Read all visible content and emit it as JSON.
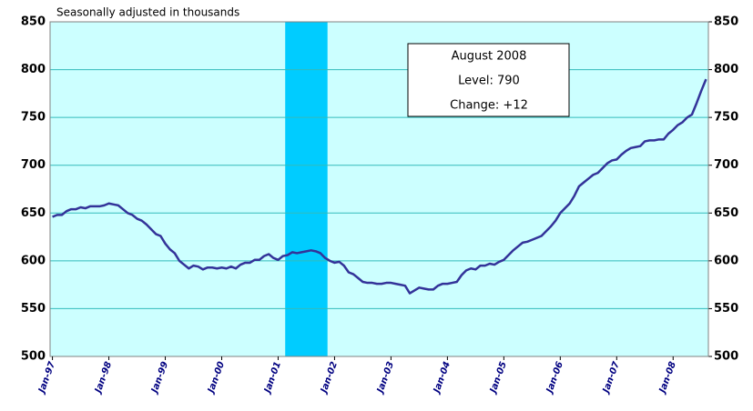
{
  "chart_data": {
    "type": "line",
    "subtitle": "Seasonally adjusted in thousands",
    "categories": [
      "Jan-97",
      null,
      null,
      null,
      null,
      null,
      null,
      null,
      null,
      null,
      null,
      null,
      "Jan-98",
      null,
      null,
      null,
      null,
      null,
      null,
      null,
      null,
      null,
      null,
      null,
      "Jan-99",
      null,
      null,
      null,
      null,
      null,
      null,
      null,
      null,
      null,
      null,
      null,
      "Jan-00",
      null,
      null,
      null,
      null,
      null,
      null,
      null,
      null,
      null,
      null,
      null,
      "Jan-01",
      null,
      null,
      null,
      null,
      null,
      null,
      null,
      null,
      null,
      null,
      null,
      "Jan-02",
      null,
      null,
      null,
      null,
      null,
      null,
      null,
      null,
      null,
      null,
      null,
      "Jan-03",
      null,
      null,
      null,
      null,
      null,
      null,
      null,
      null,
      null,
      null,
      null,
      "Jan-04",
      null,
      null,
      null,
      null,
      null,
      null,
      null,
      null,
      null,
      null,
      null,
      "Jan-05",
      null,
      null,
      null,
      null,
      null,
      null,
      null,
      null,
      null,
      null,
      null,
      "Jan-06",
      null,
      null,
      null,
      null,
      null,
      null,
      null,
      null,
      null,
      null,
      null,
      "Jan-07",
      null,
      null,
      null,
      null,
      null,
      null,
      null,
      null,
      null,
      null,
      null,
      "Jan-08",
      null,
      null,
      null,
      null,
      null,
      null,
      null
    ],
    "values": [
      646,
      648,
      648,
      652,
      654,
      654,
      656,
      655,
      657,
      657,
      657,
      658,
      660,
      659,
      658,
      654,
      650,
      648,
      644,
      642,
      638,
      633,
      628,
      626,
      618,
      612,
      608,
      600,
      596,
      592,
      595,
      594,
      591,
      593,
      593,
      592,
      593,
      592,
      594,
      592,
      596,
      598,
      598,
      601,
      601,
      605,
      607,
      603,
      601,
      605,
      606,
      609,
      608,
      609,
      610,
      611,
      610,
      608,
      603,
      600,
      598,
      599,
      595,
      588,
      586,
      582,
      578,
      577,
      577,
      576,
      576,
      577,
      577,
      576,
      575,
      574,
      566,
      569,
      572,
      571,
      570,
      570,
      574,
      576,
      576,
      577,
      578,
      585,
      590,
      592,
      591,
      595,
      595,
      597,
      596,
      599,
      601,
      606,
      611,
      615,
      619,
      620,
      622,
      624,
      626,
      631,
      636,
      642,
      650,
      655,
      660,
      668,
      678,
      682,
      686,
      690,
      692,
      697,
      702,
      705,
      706,
      711,
      715,
      718,
      719,
      720,
      725,
      726,
      726,
      727,
      727,
      733,
      737,
      742,
      745,
      750,
      753,
      765,
      778,
      790
    ],
    "color": "#333399",
    "shaded_range": [
      50,
      58
    ],
    "shade_color": "#00ccff",
    "background": "#ccffff",
    "ylim": [
      500,
      850
    ],
    "yticks": [
      500,
      550,
      600,
      650,
      700,
      750,
      800,
      850
    ],
    "y2lim": [
      500,
      850
    ],
    "y2ticks": [
      500,
      550,
      600,
      650,
      700,
      750,
      800,
      850
    ],
    "grid": true,
    "annotations": [
      "August 2008",
      "Level: 790",
      "Change: +12"
    ]
  }
}
